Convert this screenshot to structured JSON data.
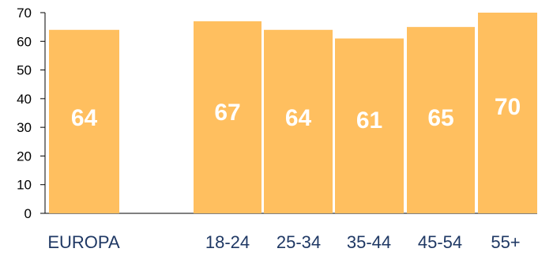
{
  "chart_data": {
    "type": "bar",
    "categories": [
      "EUROPA",
      "18-24",
      "25-34",
      "35-44",
      "45-54",
      "55+"
    ],
    "values": [
      64,
      67,
      64,
      61,
      65,
      70
    ],
    "data_labels": [
      "64",
      "67",
      "64",
      "61",
      "65",
      "70"
    ],
    "y_ticks": [
      "0",
      "10",
      "20",
      "30",
      "40",
      "50",
      "60",
      "70"
    ],
    "ylim": [
      0,
      70
    ],
    "title": "",
    "xlabel": "",
    "ylabel": "",
    "grid": false,
    "legend": "none",
    "colors": {
      "bar": "#ffbf5f",
      "data_label": "#ffffff",
      "category_label": "#1f3864",
      "axis": "#000000"
    }
  }
}
